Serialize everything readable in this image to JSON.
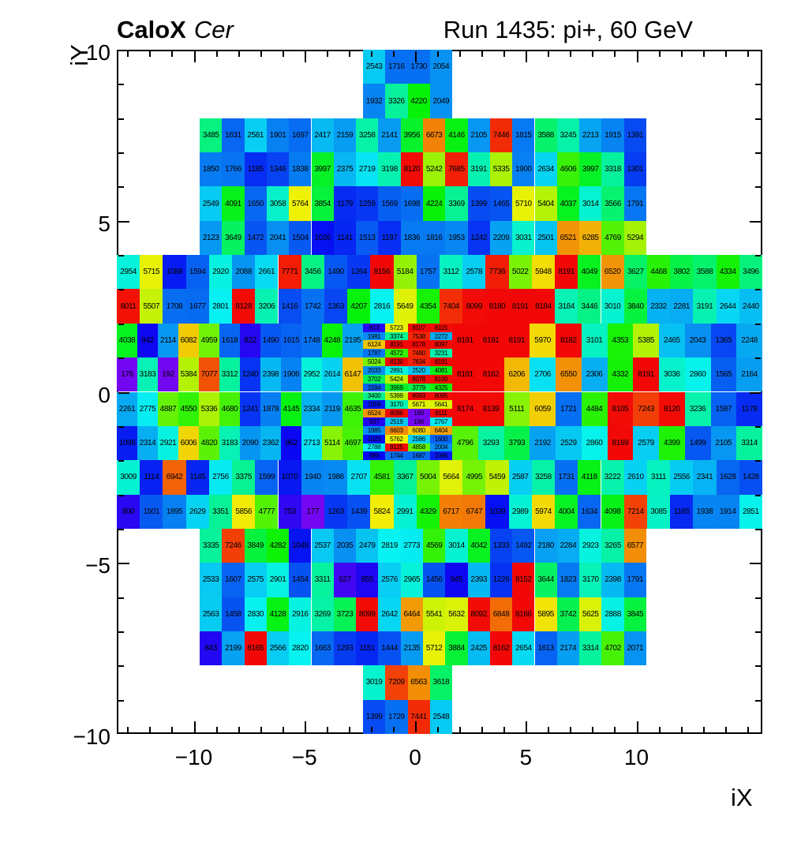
{
  "header": {
    "title_bold": "CaloX",
    "title_italic": "Cer",
    "run_label": "Run 1435: pi+, 60 GeV"
  },
  "axes": {
    "x_title": "iX",
    "y_title": "iY",
    "x_tick_labels": [
      "−10",
      "−5",
      "0",
      "5",
      "10"
    ],
    "x_tick_values": [
      -10,
      -5,
      0,
      5,
      10
    ],
    "y_tick_labels": [
      "10",
      "5",
      "0",
      "−5",
      "−10"
    ],
    "y_tick_values": [
      10,
      5,
      0,
      -5,
      -10
    ]
  },
  "chart_data": {
    "type": "heatmap",
    "title": "CaloX Cer — Run 1435: pi+, 60 GeV",
    "xlabel": "iX",
    "ylabel": "iY",
    "x_range": [
      -13.5,
      15.5
    ],
    "y_range": [
      -10,
      10
    ],
    "zmin": 0,
    "zmax": 8191,
    "palette": {
      "description": "ROOT rainbow: violet-blue-cyan-green-yellow-orange-red",
      "hue_stops": [
        [
          0,
          272
        ],
        [
          0.05,
          262
        ],
        [
          0.1,
          248
        ],
        [
          0.14,
          232
        ],
        [
          0.18,
          220
        ],
        [
          0.25,
          205
        ],
        [
          0.32,
          188
        ],
        [
          0.4,
          160
        ],
        [
          0.48,
          130
        ],
        [
          0.56,
          108
        ],
        [
          0.64,
          82
        ],
        [
          0.7,
          62
        ],
        [
          0.76,
          45
        ],
        [
          0.82,
          30
        ],
        [
          0.9,
          10
        ],
        [
          1,
          0
        ]
      ],
      "saturation": 94,
      "lightness": 49
    },
    "rows": [
      {
        "iy": 9,
        "layout": "center4",
        "values": [
          2543,
          1716,
          1730,
          2054
        ]
      },
      {
        "iy": 8,
        "layout": "center4",
        "values": [
          1932,
          3326,
          4220,
          2049
        ]
      },
      {
        "iy": 7,
        "layout": "mid20",
        "values": [
          3485,
          1631,
          2581,
          1901,
          1697,
          2417,
          2159,
          3258,
          2141,
          3956,
          6673,
          4146,
          2105,
          7446,
          1815,
          3588,
          3245,
          2213,
          1915,
          1391
        ]
      },
      {
        "iy": 6,
        "layout": "mid20",
        "values": [
          1850,
          1766,
          1185,
          1346,
          1838,
          3997,
          2375,
          2719,
          3198,
          8120,
          5242,
          7685,
          3191,
          5335,
          1900,
          2634,
          4606,
          3997,
          3318,
          1301
        ]
      },
      {
        "iy": 5,
        "layout": "mid20",
        "values": [
          2549,
          4091,
          1650,
          3058,
          5764,
          3854,
          1179,
          1259,
          1569,
          1698,
          4224,
          3369,
          1399,
          1465,
          5710,
          5404,
          4037,
          3014,
          3566,
          1791
        ]
      },
      {
        "iy": 4,
        "layout": "mid20",
        "values": [
          2123,
          3649,
          1472,
          2041,
          1504,
          1026,
          1141,
          1513,
          1197,
          1836,
          1816,
          1953,
          1242,
          2209,
          3031,
          2501,
          6521,
          6285,
          4769,
          5294
        ]
      },
      {
        "iy": 3,
        "layout": "full28",
        "values": [
          2954,
          5715,
          1088,
          1594,
          2920,
          2088,
          2661,
          7771,
          3456,
          1490,
          1264,
          8156,
          5184,
          1757,
          3112,
          2578,
          7736,
          5022,
          5948,
          8191,
          4049,
          6520,
          3627,
          4468,
          3802,
          3588,
          4334,
          3496
        ]
      },
      {
        "iy": 2,
        "layout": "full28",
        "values": [
          8011,
          5507,
          1708,
          1677,
          2801,
          8128,
          3206,
          1416,
          1742,
          1363,
          4207,
          2816,
          5649,
          4354,
          7404,
          8099,
          8180,
          8191,
          8184,
          3184,
          3446,
          3010,
          3840,
          2332,
          2281,
          3191,
          2644,
          2440
        ]
      },
      {
        "iy": 1,
        "layout": "split",
        "left": [
          4038,
          942,
          2114,
          6082,
          4959,
          1618,
          822,
          1490,
          1615,
          1748,
          4248,
          2195
        ],
        "fine": [
          [
            813,
            5723,
            8107,
            8115
          ],
          [
            1981,
            3374,
            7538,
            2272
          ],
          [
            6124,
            8191,
            8178,
            8097
          ],
          [
            1787,
            4572,
            7490,
            3231
          ]
        ],
        "right": [
          8191,
          8191,
          8191,
          5970,
          8182,
          3101,
          4353,
          5385,
          2465,
          2043,
          1365,
          2248
        ]
      },
      {
        "iy": 0,
        "layout": "split",
        "left": [
          176,
          3183,
          192,
          5384,
          7077,
          3312,
          1240,
          2398,
          1906,
          2952,
          2614,
          6147
        ],
        "fine": [
          [
            5024,
            8130,
            7634,
            8191
          ],
          [
            2033,
            2891,
            2520,
            4081
          ],
          [
            3702,
            5424,
            8078,
            8100
          ],
          [
            1594,
            3969,
            3779,
            4325
          ]
        ],
        "right": [
          8191,
          8162,
          6206,
          2706,
          6550,
          2306,
          4332,
          8191,
          3036,
          2860,
          1565,
          2164
        ]
      },
      {
        "iy": -1,
        "layout": "split",
        "left": [
          2261,
          2775,
          4887,
          4550,
          5336,
          4680,
          1241,
          1878,
          4145,
          2334,
          2119,
          4635
        ],
        "fine": [
          [
            3400,
            5399,
            8093,
            8095
          ],
          [
            1058,
            3170,
            5671,
            5641
          ],
          [
            6524,
            8096,
            190,
            8111
          ],
          [
            837,
            2519,
            196,
            2767
          ]
        ],
        "right": [
          8174,
          8139,
          5111,
          6059,
          1721,
          4484,
          8105,
          7243,
          8120,
          3236,
          1587,
          1178
        ]
      },
      {
        "iy": -2,
        "layout": "split",
        "left": [
          1098,
          2314,
          2921,
          6006,
          4820,
          3183,
          2090,
          2362,
          962,
          2713,
          5114,
          4697
        ],
        "fine": [
          [
            1985,
            6603,
            6080,
            6404
          ],
          [
            1023,
            5762,
            2586,
            1600
          ],
          [
            2788,
            8125,
            4858,
            2004
          ],
          [
            989,
            1744,
            1687,
            1086
          ]
        ],
        "right": [
          4796,
          3293,
          3793,
          2192,
          2529,
          2860,
          8169,
          2579,
          4399,
          1499,
          2105,
          3314
        ]
      },
      {
        "iy": -3,
        "layout": "full28",
        "values": [
          3009,
          1114,
          6942,
          1145,
          2756,
          3375,
          1599,
          1070,
          1940,
          1986,
          2707,
          4581,
          3367,
          5004,
          5664,
          4995,
          5459,
          2587,
          3258,
          1731,
          4118,
          3222,
          2610,
          3111,
          2556,
          2341,
          1628,
          1428
        ]
      },
      {
        "iy": -4,
        "layout": "full28",
        "values": [
          800,
          1501,
          1895,
          2629,
          3351,
          5856,
          4777,
          753,
          177,
          1263,
          1439,
          5824,
          2991,
          4329,
          6717,
          6747,
          1029,
          2989,
          5974,
          4004,
          1634,
          4098,
          7214,
          3085,
          1165,
          1938,
          1914,
          2851
        ]
      },
      {
        "iy": -5,
        "layout": "mid20",
        "values": [
          3335,
          7246,
          3849,
          4282,
          1049,
          2537,
          2035,
          2479,
          2819,
          2773,
          4569,
          3014,
          4042,
          1333,
          1492,
          2180,
          2284,
          2923,
          3265,
          6577
        ]
      },
      {
        "iy": -6,
        "layout": "mid20",
        "values": [
          2533,
          1607,
          2575,
          2901,
          1454,
          3311,
          627,
          855,
          2576,
          2965,
          1456,
          945,
          2393,
          1226,
          8152,
          3644,
          1823,
          3170,
          2398,
          1791
        ]
      },
      {
        "iy": -7,
        "layout": "mid20",
        "values": [
          2563,
          1458,
          2830,
          4128,
          2916,
          3269,
          3723,
          8099,
          2642,
          6464,
          5541,
          5632,
          8092,
          6848,
          8166,
          5895,
          3742,
          5625,
          2888,
          3845
        ]
      },
      {
        "iy": -8,
        "layout": "mid20",
        "values": [
          843,
          2199,
          8165,
          2566,
          2820,
          1663,
          1293,
          1151,
          1444,
          2135,
          5712,
          3884,
          2425,
          8162,
          2654,
          1613,
          2174,
          3314,
          4702,
          2071
        ]
      },
      {
        "iy": -9,
        "layout": "center4",
        "values": [
          3019,
          7209,
          6563,
          3618
        ]
      },
      {
        "iy": -10,
        "layout": "center4",
        "values": [
          1399,
          1729,
          7441,
          2548
        ]
      }
    ]
  }
}
